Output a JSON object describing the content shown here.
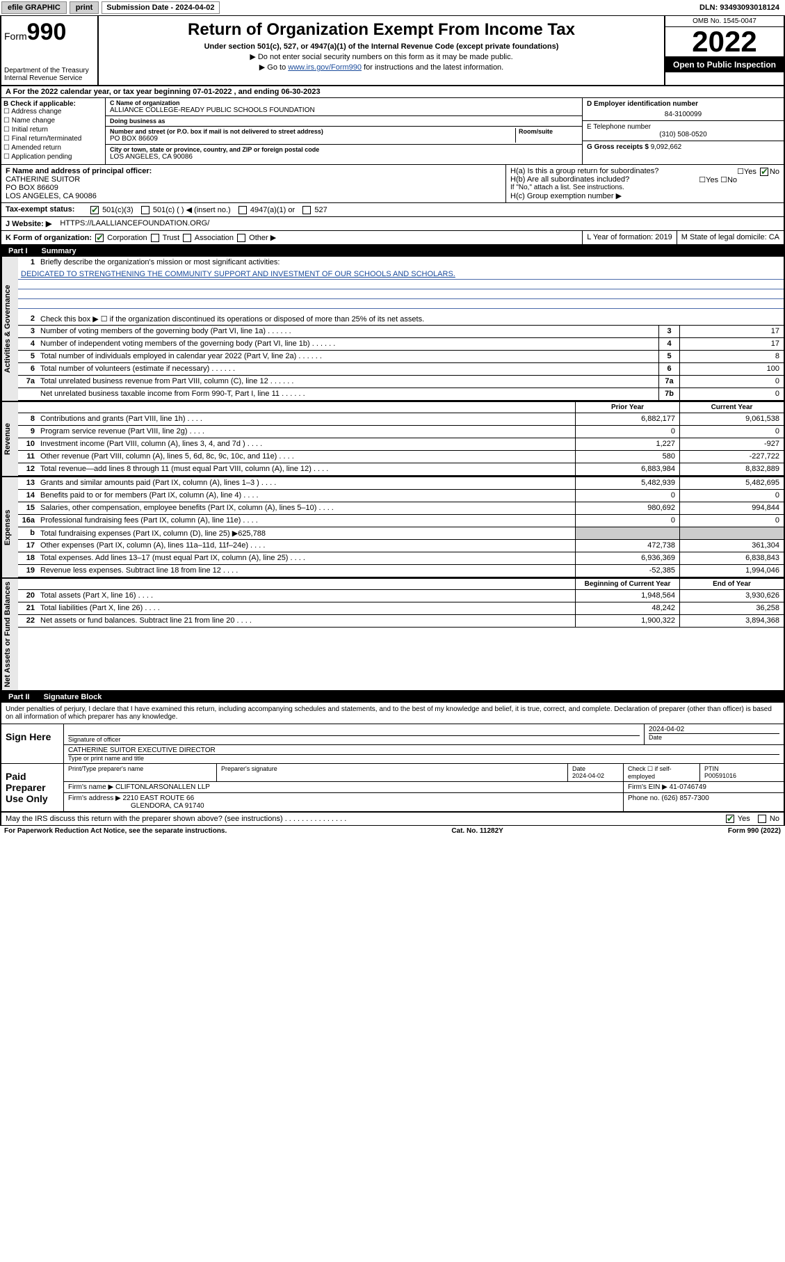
{
  "topbar": {
    "efile": "efile GRAPHIC",
    "print": "print",
    "sub_label": "Submission Date - 2024-04-02",
    "dln": "DLN: 93493093018124"
  },
  "header": {
    "form_label": "Form",
    "form_num": "990",
    "dept": "Department of the Treasury\nInternal Revenue Service",
    "title": "Return of Organization Exempt From Income Tax",
    "sub1": "Under section 501(c), 527, or 4947(a)(1) of the Internal Revenue Code (except private foundations)",
    "sub2a": "▶ Do not enter social security numbers on this form as it may be made public.",
    "sub2b_pre": "▶ Go to ",
    "sub2b_link": "www.irs.gov/Form990",
    "sub2b_post": " for instructions and the latest information.",
    "omb": "OMB No. 1545-0047",
    "year": "2022",
    "open": "Open to Public Inspection"
  },
  "period": {
    "text": "A For the 2022 calendar year, or tax year beginning 07-01-2022   , and ending 06-30-2023"
  },
  "sectionB": {
    "header": "B Check if applicable:",
    "checks": [
      "Address change",
      "Name change",
      "Initial return",
      "Final return/terminated",
      "Amended return",
      "Application pending"
    ],
    "c_name_lbl": "C Name of organization",
    "c_name": "ALLIANCE COLLEGE-READY PUBLIC SCHOOLS FOUNDATION",
    "dba_lbl": "Doing business as",
    "dba": "",
    "addr_lbl": "Number and street (or P.O. box if mail is not delivered to street address)",
    "addr": "PO BOX 86609",
    "room_lbl": "Room/suite",
    "city_lbl": "City or town, state or province, country, and ZIP or foreign postal code",
    "city": "LOS ANGELES, CA  90086",
    "d_lbl": "D Employer identification number",
    "d_val": "84-3100099",
    "e_lbl": "E Telephone number",
    "e_val": "(310) 508-0520",
    "g_lbl": "G Gross receipts $",
    "g_val": "9,092,662"
  },
  "rowF": {
    "label": "F Name and address of principal officer:",
    "name": "CATHERINE SUITOR",
    "addr1": "PO BOX 86609",
    "addr2": "LOS ANGELES, CA  90086",
    "ha": "H(a)  Is this a group return for subordinates?",
    "hb": "H(b)  Are all subordinates included?",
    "hb_note": "If \"No,\" attach a list. See instructions.",
    "hc": "H(c)  Group exemption number ▶"
  },
  "rowI": {
    "label": "Tax-exempt status:",
    "opt1": "501(c)(3)",
    "opt2": "501(c) (  ) ◀ (insert no.)",
    "opt3": "4947(a)(1) or",
    "opt4": "527"
  },
  "rowJ": {
    "label": "J   Website: ▶",
    "val": "HTTPS://LAALLIANCEFOUNDATION.ORG/"
  },
  "rowK": {
    "label": "K Form of organization:",
    "opts": [
      "Corporation",
      "Trust",
      "Association",
      "Other ▶"
    ],
    "l": "L Year of formation: 2019",
    "m": "M State of legal domicile: CA"
  },
  "partI": {
    "title": "Part I",
    "subtitle": "Summary"
  },
  "summary": {
    "line1_lbl": "Briefly describe the organization's mission or most significant activities:",
    "mission": "DEDICATED TO STRENGTHENING THE COMMUNITY SUPPORT AND INVESTMENT OF OUR SCHOOLS AND SCHOLARS.",
    "line2": "Check this box ▶ ☐  if the organization discontinued its operations or disposed of more than 25% of its net assets.",
    "rows_single": [
      {
        "n": "3",
        "d": "Number of voting members of the governing body (Part VI, line 1a)",
        "box": "3",
        "v": "17"
      },
      {
        "n": "4",
        "d": "Number of independent voting members of the governing body (Part VI, line 1b)",
        "box": "4",
        "v": "17"
      },
      {
        "n": "5",
        "d": "Total number of individuals employed in calendar year 2022 (Part V, line 2a)",
        "box": "5",
        "v": "8"
      },
      {
        "n": "6",
        "d": "Total number of volunteers (estimate if necessary)",
        "box": "6",
        "v": "100"
      },
      {
        "n": "7a",
        "d": "Total unrelated business revenue from Part VIII, column (C), line 12",
        "box": "7a",
        "v": "0"
      },
      {
        "n": "",
        "d": "Net unrelated business taxable income from Form 990-T, Part I, line 11",
        "box": "7b",
        "v": "0"
      }
    ],
    "col_prior": "Prior Year",
    "col_current": "Current Year",
    "rows_revenue": [
      {
        "n": "8",
        "d": "Contributions and grants (Part VIII, line 1h)",
        "p": "6,882,177",
        "c": "9,061,538"
      },
      {
        "n": "9",
        "d": "Program service revenue (Part VIII, line 2g)",
        "p": "0",
        "c": "0"
      },
      {
        "n": "10",
        "d": "Investment income (Part VIII, column (A), lines 3, 4, and 7d )",
        "p": "1,227",
        "c": "-927"
      },
      {
        "n": "11",
        "d": "Other revenue (Part VIII, column (A), lines 5, 6d, 8c, 9c, 10c, and 11e)",
        "p": "580",
        "c": "-227,722"
      },
      {
        "n": "12",
        "d": "Total revenue—add lines 8 through 11 (must equal Part VIII, column (A), line 12)",
        "p": "6,883,984",
        "c": "8,832,889"
      }
    ],
    "rows_expenses": [
      {
        "n": "13",
        "d": "Grants and similar amounts paid (Part IX, column (A), lines 1–3 )",
        "p": "5,482,939",
        "c": "5,482,695"
      },
      {
        "n": "14",
        "d": "Benefits paid to or for members (Part IX, column (A), line 4)",
        "p": "0",
        "c": "0"
      },
      {
        "n": "15",
        "d": "Salaries, other compensation, employee benefits (Part IX, column (A), lines 5–10)",
        "p": "980,692",
        "c": "994,844"
      },
      {
        "n": "16a",
        "d": "Professional fundraising fees (Part IX, column (A), line 11e)",
        "p": "0",
        "c": "0"
      },
      {
        "n": "b",
        "d": "Total fundraising expenses (Part IX, column (D), line 25) ▶625,788",
        "p": "",
        "c": ""
      },
      {
        "n": "17",
        "d": "Other expenses (Part IX, column (A), lines 11a–11d, 11f–24e)",
        "p": "472,738",
        "c": "361,304"
      },
      {
        "n": "18",
        "d": "Total expenses. Add lines 13–17 (must equal Part IX, column (A), line 25)",
        "p": "6,936,369",
        "c": "6,838,843"
      },
      {
        "n": "19",
        "d": "Revenue less expenses. Subtract line 18 from line 12",
        "p": "-52,385",
        "c": "1,994,046"
      }
    ],
    "col_begin": "Beginning of Current Year",
    "col_end": "End of Year",
    "rows_net": [
      {
        "n": "20",
        "d": "Total assets (Part X, line 16)",
        "p": "1,948,564",
        "c": "3,930,626"
      },
      {
        "n": "21",
        "d": "Total liabilities (Part X, line 26)",
        "p": "48,242",
        "c": "36,258"
      },
      {
        "n": "22",
        "d": "Net assets or fund balances. Subtract line 21 from line 20",
        "p": "1,900,322",
        "c": "3,894,368"
      }
    ],
    "vlabels": {
      "gov": "Activities & Governance",
      "rev": "Revenue",
      "exp": "Expenses",
      "net": "Net Assets or Fund Balances"
    }
  },
  "partII": {
    "title": "Part II",
    "subtitle": "Signature Block"
  },
  "sig": {
    "declare": "Under penalties of perjury, I declare that I have examined this return, including accompanying schedules and statements, and to the best of my knowledge and belief, it is true, correct, and complete. Declaration of preparer (other than officer) is based on all information of which preparer has any knowledge.",
    "sign_here": "Sign Here",
    "sig_officer": "Signature of officer",
    "date_lbl": "Date",
    "date_val": "2024-04-02",
    "name_title": "CATHERINE SUITOR  EXECUTIVE DIRECTOR",
    "name_lbl": "Type or print name and title",
    "paid_label": "Paid Preparer Use Only",
    "prep_name_lbl": "Print/Type preparer's name",
    "prep_sig_lbl": "Preparer's signature",
    "prep_date": "2024-04-02",
    "check_self": "Check ☐ if self-employed",
    "ptin_lbl": "PTIN",
    "ptin": "P00591016",
    "firm_name_lbl": "Firm's name    ▶",
    "firm_name": "CLIFTONLARSONALLEN LLP",
    "firm_ein_lbl": "Firm's EIN ▶",
    "firm_ein": "41-0746749",
    "firm_addr_lbl": "Firm's address ▶",
    "firm_addr1": "2210 EAST ROUTE 66",
    "firm_addr2": "GLENDORA, CA  91740",
    "phone_lbl": "Phone no.",
    "phone": "(626) 857-7300",
    "discuss": "May the IRS discuss this return with the preparer shown above? (see instructions)"
  },
  "footer": {
    "left": "For Paperwork Reduction Act Notice, see the separate instructions.",
    "mid": "Cat. No. 11282Y",
    "right": "Form 990 (2022)"
  }
}
